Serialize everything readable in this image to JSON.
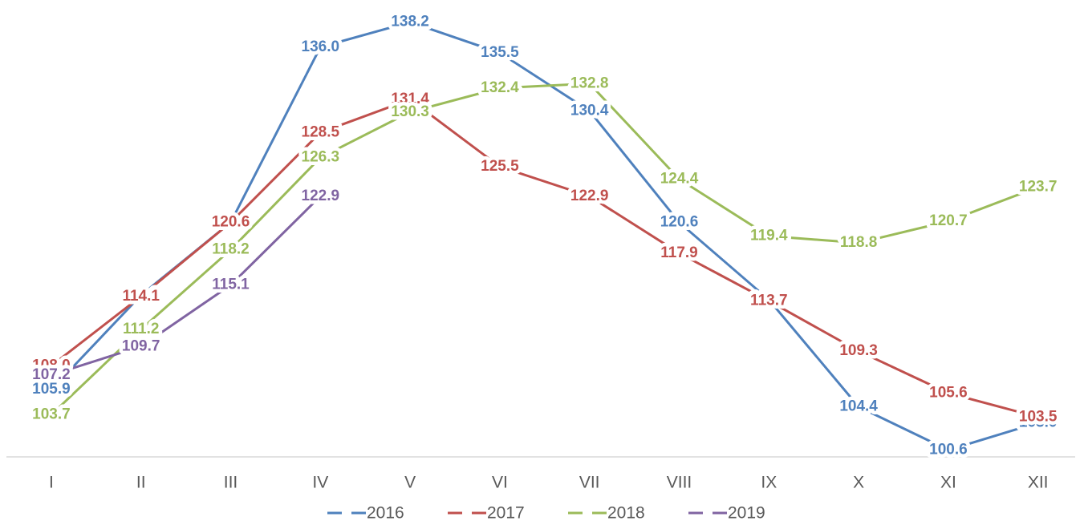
{
  "chart_data": {
    "type": "line",
    "categories": [
      "I",
      "II",
      "III",
      "IV",
      "V",
      "VI",
      "VII",
      "VIII",
      "IX",
      "X",
      "XI",
      "XII"
    ],
    "series": [
      {
        "name": "2016",
        "color": "#4f81bd",
        "values": [
          105.9,
          114.2,
          120.6,
          136.0,
          138.2,
          135.5,
          130.4,
          120.6,
          113.8,
          104.4,
          100.6,
          103.0
        ],
        "value_labels": [
          "105.9",
          "114.2",
          "120.6",
          "136.0",
          "138.2",
          "135.5",
          "130.4",
          "120.6",
          "113.8",
          "104.4",
          "100.6",
          "103.0"
        ]
      },
      {
        "name": "2017",
        "color": "#c0504d",
        "values": [
          108.0,
          114.1,
          120.6,
          128.5,
          131.4,
          125.5,
          122.9,
          117.9,
          113.7,
          109.3,
          105.6,
          103.5
        ],
        "value_labels": [
          "108.0",
          "114.1",
          "120.6",
          "128.5",
          "131.4",
          "125.5",
          "122.9",
          "117.9",
          "113.7",
          "109.3",
          "105.6",
          "103.5"
        ]
      },
      {
        "name": "2018",
        "color": "#9bbb59",
        "values": [
          103.7,
          111.2,
          118.2,
          126.3,
          130.3,
          132.4,
          132.8,
          124.4,
          119.4,
          118.8,
          120.7,
          123.7
        ],
        "value_labels": [
          "103.7",
          "111.2",
          "118.2",
          "126.3",
          "130.3",
          "132.4",
          "132.8",
          "124.4",
          "119.4",
          "118.8",
          "120.7",
          "123.7"
        ]
      },
      {
        "name": "2019",
        "color": "#8064a2",
        "values": [
          107.2,
          109.7,
          115.1,
          122.9,
          null,
          null,
          null,
          null,
          null,
          null,
          null,
          null
        ],
        "value_labels": [
          "107.2",
          "109.7",
          "115.1",
          "122.9",
          null,
          null,
          null,
          null,
          null,
          null,
          null,
          null
        ]
      }
    ],
    "ylim": [
      100,
      140
    ],
    "legend": "bottom"
  }
}
